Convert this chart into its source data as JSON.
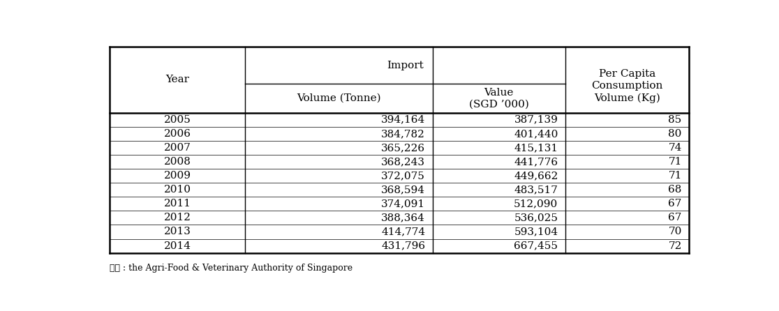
{
  "years": [
    "2005",
    "2006",
    "2007",
    "2008",
    "2009",
    "2010",
    "2011",
    "2012",
    "2013",
    "2014"
  ],
  "volume_tonne": [
    "394,164",
    "384,782",
    "365,226",
    "368,243",
    "372,075",
    "368,594",
    "374,091",
    "388,364",
    "414,774",
    "431,796"
  ],
  "value_sgd": [
    "387,139",
    "401,440",
    "415,131",
    "441,776",
    "449,662",
    "483,517",
    "512,090",
    "536,025",
    "593,104",
    "667,455"
  ],
  "per_capita_kg": [
    "85",
    "80",
    "74",
    "71",
    "71",
    "68",
    "67",
    "67",
    "70",
    "72"
  ],
  "footer": "잘위 : the Agri-Food & Veterinary Authority of Singapore",
  "bg_color": "#ffffff",
  "text_color": "#000000",
  "font_size": 11
}
